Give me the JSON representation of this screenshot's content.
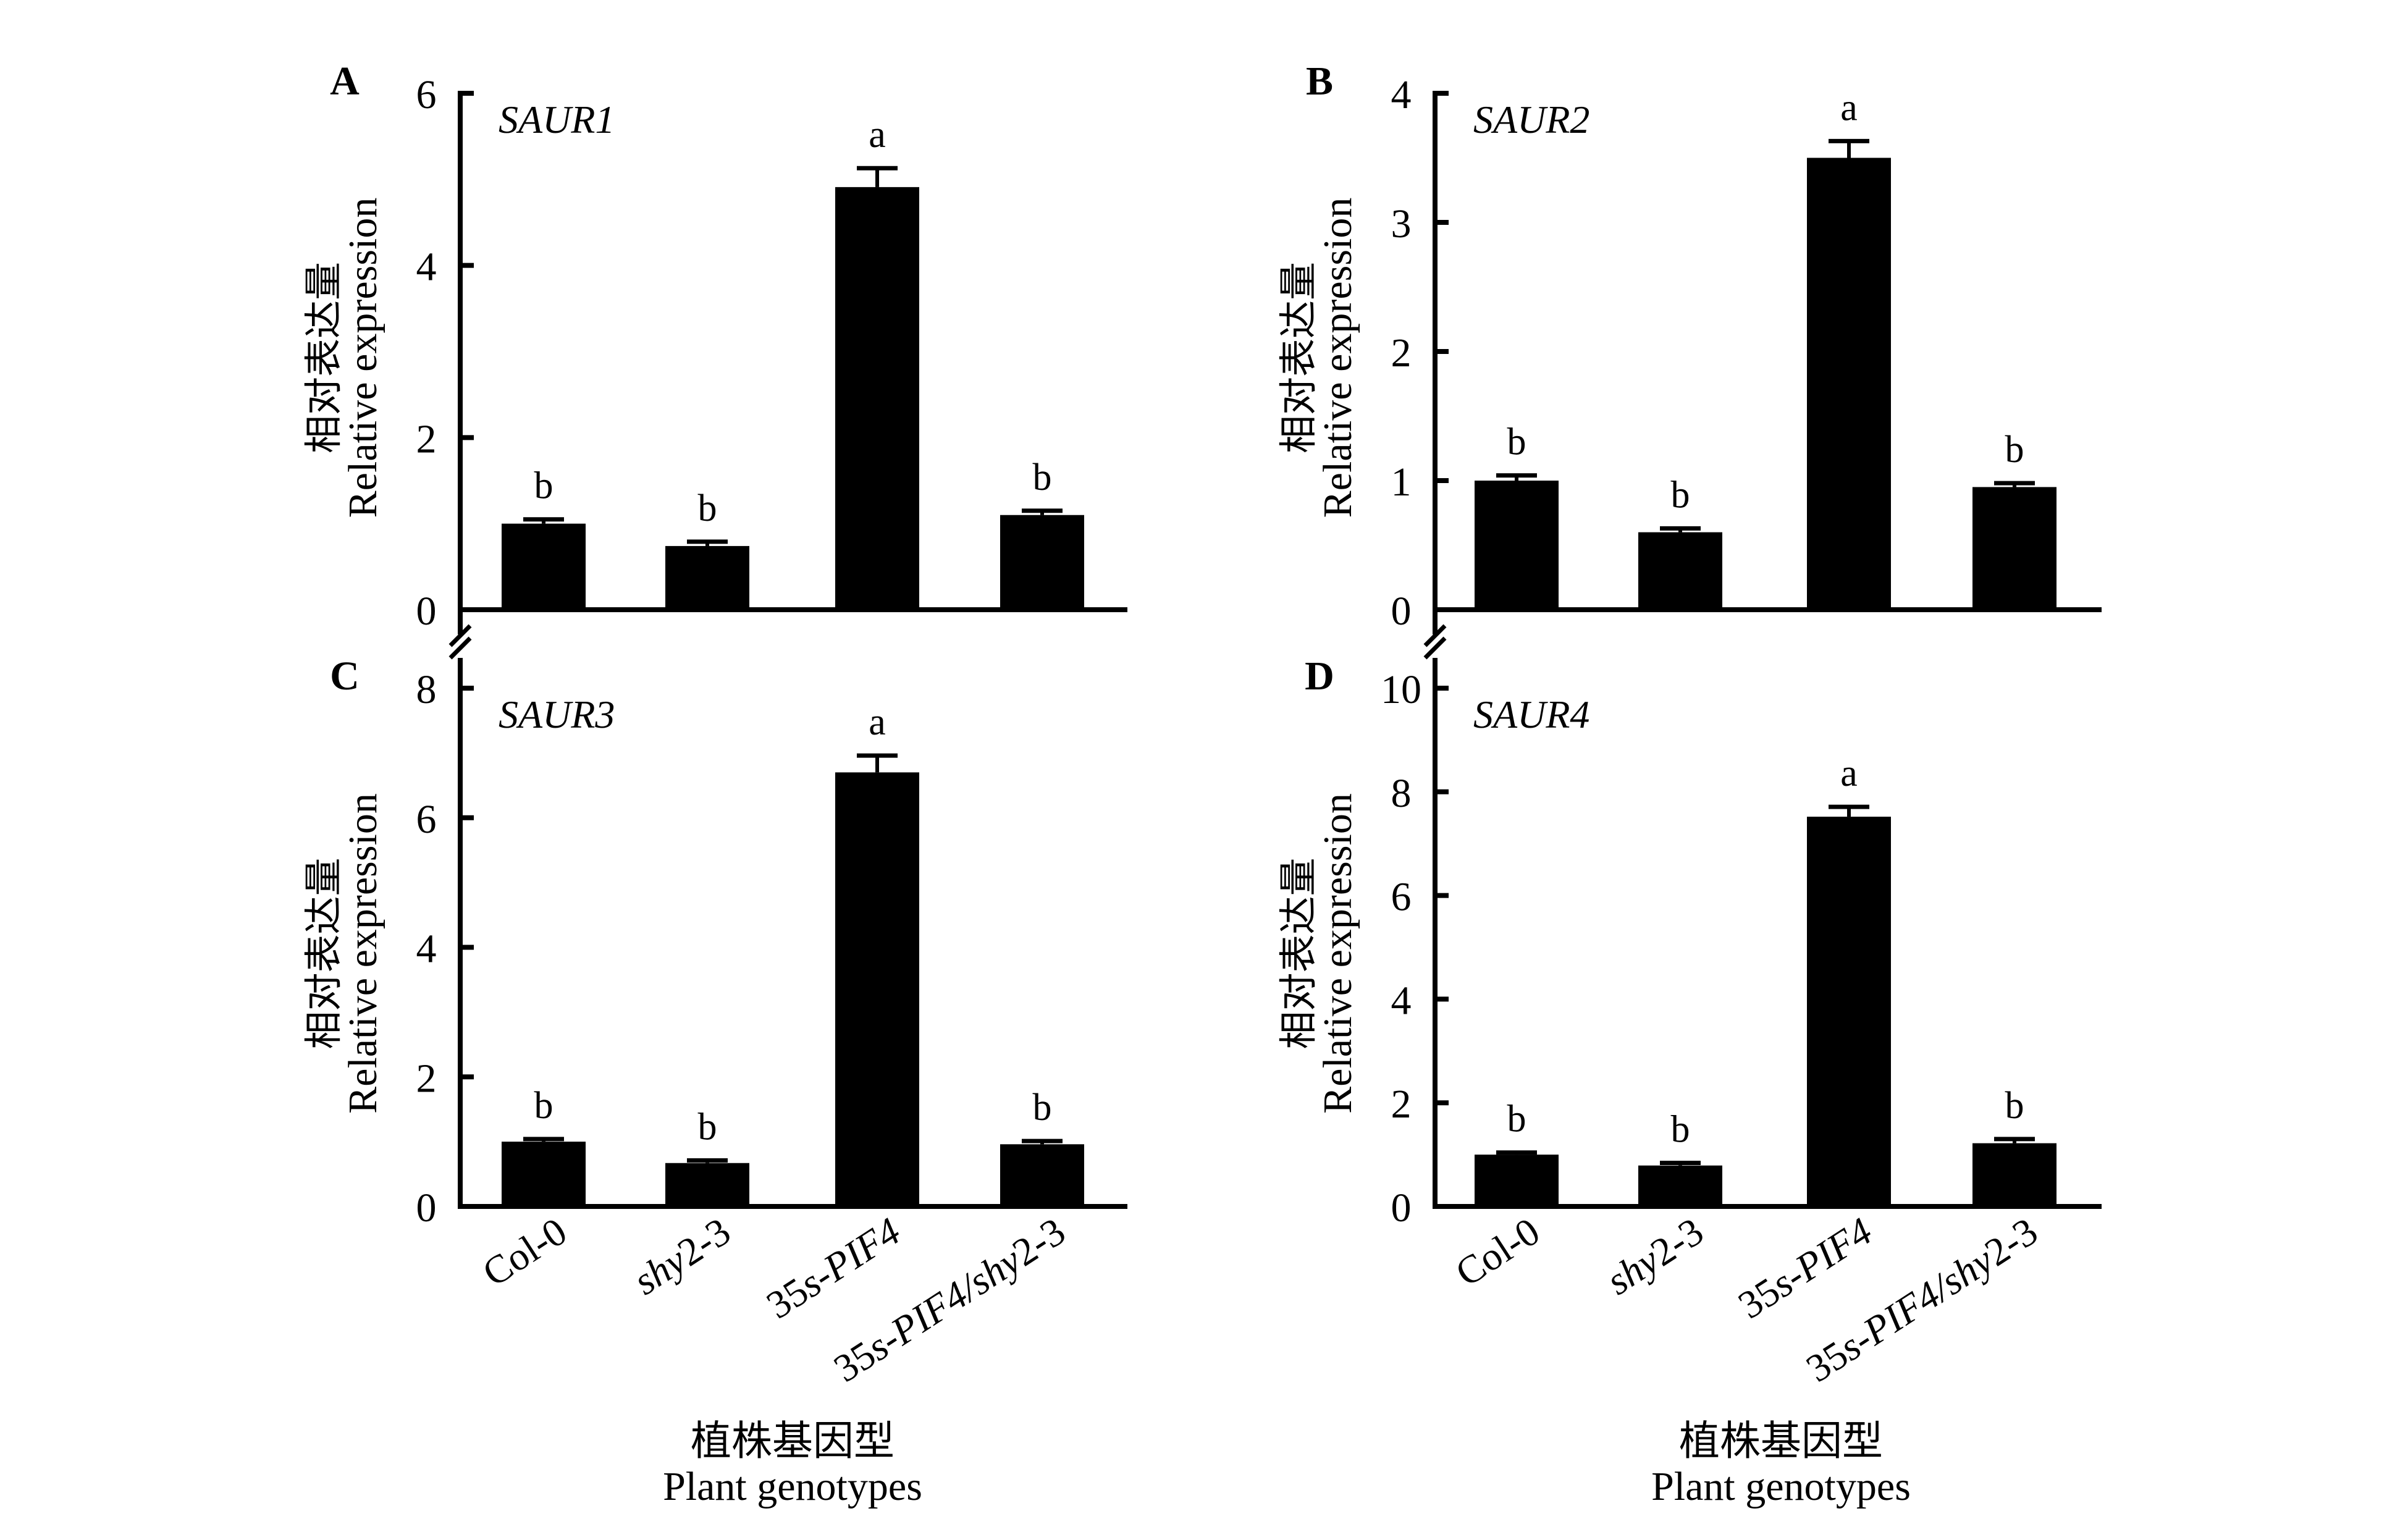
{
  "colors": {
    "bar": "#000000",
    "axis": "#000000",
    "background": "#ffffff"
  },
  "y_axis_title": {
    "cn": "相对表达量",
    "en": "Relative expression"
  },
  "x_axis_title": {
    "cn": "植株基因型",
    "en": "Plant genotypes"
  },
  "x_tick_labels": [
    {
      "parts": [
        {
          "text": "Col-0",
          "italic": false
        }
      ]
    },
    {
      "parts": [
        {
          "text": "shy",
          "italic": true
        },
        {
          "text": "2-3",
          "italic": false
        }
      ]
    },
    {
      "parts": [
        {
          "text": "35",
          "italic": false
        },
        {
          "text": "s-PIF4",
          "italic": true
        }
      ]
    },
    {
      "parts": [
        {
          "text": "35",
          "italic": false
        },
        {
          "text": "s-PIF4/shy",
          "italic": true
        },
        {
          "text": "2-3",
          "italic": false
        }
      ]
    }
  ],
  "chart_data": [
    {
      "type": "bar",
      "panel": "A",
      "title": "SAUR1",
      "categories": [
        "Col-0",
        "shy2-3",
        "35s-PIF4",
        "35s-PIF4/shy2-3"
      ],
      "values": [
        1.0,
        0.74,
        4.91,
        1.1
      ],
      "error": [
        0.05,
        0.05,
        0.22,
        0.05
      ],
      "significance": [
        "b",
        "b",
        "a",
        "b"
      ],
      "ylim": [
        0,
        6
      ],
      "yticks": [
        0,
        2,
        4,
        6
      ],
      "ylabel": "相对表达量 Relative expression",
      "xlabel": "",
      "axis_break_below": true
    },
    {
      "type": "bar",
      "panel": "B",
      "title": "SAUR2",
      "categories": [
        "Col-0",
        "shy2-3",
        "35s-PIF4",
        "35s-PIF4/shy2-3"
      ],
      "values": [
        1.0,
        0.6,
        3.5,
        0.95
      ],
      "error": [
        0.04,
        0.03,
        0.13,
        0.03
      ],
      "significance": [
        "b",
        "b",
        "a",
        "b"
      ],
      "ylim": [
        0,
        4
      ],
      "yticks": [
        0,
        1,
        2,
        3,
        4
      ],
      "ylabel": "相对表达量 Relative expression",
      "xlabel": "",
      "axis_break_below": true
    },
    {
      "type": "bar",
      "panel": "C",
      "title": "SAUR3",
      "categories": [
        "Col-0",
        "shy2-3",
        "35s-PIF4",
        "35s-PIF4/shy2-3"
      ],
      "values": [
        1.0,
        0.67,
        6.7,
        0.96
      ],
      "error": [
        0.04,
        0.04,
        0.26,
        0.05
      ],
      "significance": [
        "b",
        "b",
        "a",
        "b"
      ],
      "ylim": [
        0,
        8
      ],
      "yticks": [
        0,
        2,
        4,
        6,
        8
      ],
      "ylabel": "相对表达量 Relative expression",
      "xlabel": "植株基因型 Plant genotypes",
      "axis_break_below": false
    },
    {
      "type": "bar",
      "panel": "D",
      "title": "SAUR4",
      "categories": [
        "Col-0",
        "shy2-3",
        "35s-PIF4",
        "35s-PIF4/shy2-3"
      ],
      "values": [
        1.0,
        0.79,
        7.52,
        1.22
      ],
      "error": [
        0.04,
        0.05,
        0.19,
        0.08
      ],
      "significance": [
        "b",
        "b",
        "a",
        "b"
      ],
      "ylim": [
        0,
        10
      ],
      "yticks": [
        0,
        2,
        4,
        6,
        8,
        10
      ],
      "ylabel": "相对表达量 Relative expression",
      "xlabel": "植株基因型 Plant genotypes",
      "axis_break_below": false
    }
  ]
}
